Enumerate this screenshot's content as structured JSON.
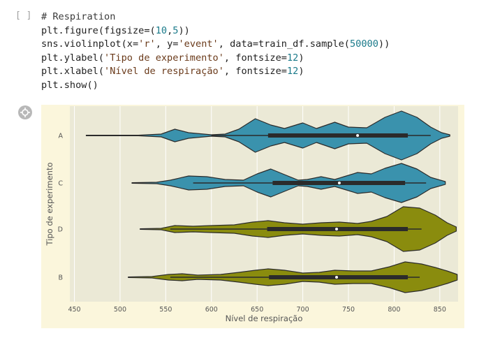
{
  "cell": {
    "prompt": "[ ]",
    "code_lines": [
      [
        {
          "t": "# Respiration",
          "c": "comment"
        }
      ],
      [
        {
          "t": "plt.figure(figsize=(",
          "c": ""
        },
        {
          "t": "10",
          "c": "num"
        },
        {
          "t": ",",
          "c": ""
        },
        {
          "t": "5",
          "c": "num"
        },
        {
          "t": "))",
          "c": ""
        }
      ],
      [
        {
          "t": "sns.violinplot(x=",
          "c": ""
        },
        {
          "t": "'r'",
          "c": "str"
        },
        {
          "t": ", y=",
          "c": ""
        },
        {
          "t": "'event'",
          "c": "str"
        },
        {
          "t": ", data=train_df.sample(",
          "c": ""
        },
        {
          "t": "50000",
          "c": "num"
        },
        {
          "t": "))",
          "c": ""
        }
      ],
      [
        {
          "t": "plt.ylabel(",
          "c": ""
        },
        {
          "t": "'Tipo de experimento'",
          "c": "str"
        },
        {
          "t": ", fontsize=",
          "c": ""
        },
        {
          "t": "12",
          "c": "num"
        },
        {
          "t": ")",
          "c": ""
        }
      ],
      [
        {
          "t": "plt.xlabel(",
          "c": ""
        },
        {
          "t": "'Nível de respiração'",
          "c": "str"
        },
        {
          "t": ", fontsize=",
          "c": ""
        },
        {
          "t": "12",
          "c": "num"
        },
        {
          "t": ")",
          "c": ""
        }
      ],
      [
        {
          "t": "plt.show()",
          "c": ""
        }
      ]
    ]
  },
  "output_icon": "output-settings-icon",
  "chart_data": {
    "type": "violin",
    "xlabel": "Nível de respiração",
    "ylabel": "Tipo de experimento",
    "xlim": [
      445,
      870
    ],
    "xticks": [
      450,
      500,
      550,
      600,
      650,
      700,
      750,
      800,
      850
    ],
    "categories": [
      "A",
      "C",
      "D",
      "B"
    ],
    "colors": {
      "A": "#3a92ad",
      "C": "#3a92ad",
      "D": "#8a8c0e",
      "B": "#8a8c0e"
    },
    "background": "#ebe9d6",
    "grid": true,
    "violins": [
      {
        "name": "A",
        "min": 463,
        "max": 861,
        "whisker_low": 600,
        "whisker_high": 840,
        "q1": 662,
        "median": 760,
        "q3": 815,
        "profile": [
          [
            463,
            0.4
          ],
          [
            520,
            0.4
          ],
          [
            545,
            2
          ],
          [
            560,
            9
          ],
          [
            575,
            4
          ],
          [
            600,
            1
          ],
          [
            615,
            2
          ],
          [
            630,
            9
          ],
          [
            648,
            24
          ],
          [
            665,
            15
          ],
          [
            680,
            10
          ],
          [
            700,
            18
          ],
          [
            715,
            10
          ],
          [
            735,
            19
          ],
          [
            750,
            12
          ],
          [
            770,
            11
          ],
          [
            790,
            26
          ],
          [
            808,
            35
          ],
          [
            825,
            26
          ],
          [
            840,
            12
          ],
          [
            852,
            4
          ],
          [
            861,
            1
          ]
        ]
      },
      {
        "name": "C",
        "min": 513,
        "max": 856,
        "whisker_low": 580,
        "whisker_high": 835,
        "q1": 667,
        "median": 740,
        "q3": 812,
        "profile": [
          [
            513,
            0.4
          ],
          [
            540,
            1
          ],
          [
            555,
            4
          ],
          [
            575,
            10
          ],
          [
            595,
            9
          ],
          [
            615,
            5
          ],
          [
            635,
            4
          ],
          [
            650,
            13
          ],
          [
            665,
            20
          ],
          [
            680,
            12
          ],
          [
            695,
            4
          ],
          [
            705,
            5
          ],
          [
            720,
            9
          ],
          [
            735,
            5
          ],
          [
            745,
            9
          ],
          [
            760,
            15
          ],
          [
            775,
            13
          ],
          [
            790,
            21
          ],
          [
            808,
            28
          ],
          [
            825,
            20
          ],
          [
            840,
            8
          ],
          [
            856,
            2
          ]
        ]
      },
      {
        "name": "D",
        "min": 522,
        "max": 868,
        "whisker_low": 555,
        "whisker_high": 830,
        "q1": 661,
        "median": 737,
        "q3": 815,
        "profile": [
          [
            522,
            0.4
          ],
          [
            545,
            1
          ],
          [
            560,
            5
          ],
          [
            580,
            4
          ],
          [
            600,
            5
          ],
          [
            625,
            6
          ],
          [
            645,
            10
          ],
          [
            662,
            12
          ],
          [
            680,
            9
          ],
          [
            700,
            7
          ],
          [
            720,
            9
          ],
          [
            740,
            10
          ],
          [
            760,
            8
          ],
          [
            775,
            11
          ],
          [
            792,
            18
          ],
          [
            810,
            32
          ],
          [
            828,
            30
          ],
          [
            845,
            20
          ],
          [
            858,
            9
          ],
          [
            868,
            3
          ]
        ]
      },
      {
        "name": "B",
        "min": 509,
        "max": 869,
        "whisker_low": 555,
        "whisker_high": 828,
        "q1": 663,
        "median": 737,
        "q3": 815,
        "profile": [
          [
            509,
            0.4
          ],
          [
            535,
            1
          ],
          [
            553,
            4
          ],
          [
            568,
            5
          ],
          [
            585,
            3
          ],
          [
            610,
            4
          ],
          [
            630,
            7
          ],
          [
            648,
            10
          ],
          [
            662,
            12
          ],
          [
            680,
            10
          ],
          [
            700,
            6
          ],
          [
            718,
            7
          ],
          [
            735,
            10
          ],
          [
            755,
            9
          ],
          [
            775,
            9
          ],
          [
            795,
            15
          ],
          [
            812,
            22
          ],
          [
            830,
            19
          ],
          [
            845,
            14
          ],
          [
            858,
            9
          ],
          [
            869,
            4
          ]
        ]
      }
    ]
  }
}
